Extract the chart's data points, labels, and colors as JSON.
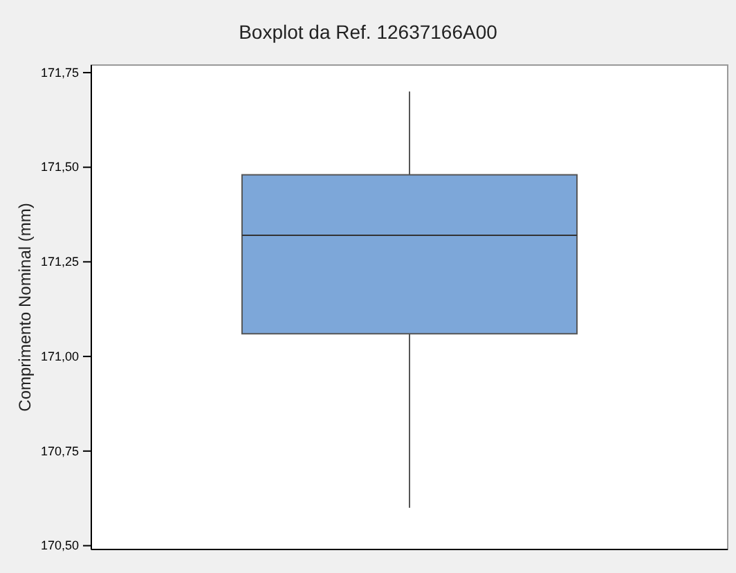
{
  "chart_data": {
    "type": "box",
    "title": "Boxplot da Ref. 12637166A00",
    "ylabel": "Comprimento Nominal (mm)",
    "categories": [
      null
    ],
    "series": [
      {
        "color": "#7da7d9",
        "boxes": [
          {
            "low": 170.6,
            "q1": 171.06,
            "median": 171.32,
            "q3": 171.48,
            "high": 171.7
          }
        ]
      }
    ],
    "ylim": [
      170.49,
      171.77
    ],
    "yticks": [
      {
        "value": 170.5,
        "label": "170,50"
      },
      {
        "value": 170.75,
        "label": "170,75"
      },
      {
        "value": 171,
        "label": "171,00"
      },
      {
        "value": 171.25,
        "label": "171,25"
      },
      {
        "value": 171.5,
        "label": "171,50"
      },
      {
        "value": 171.75,
        "label": "171,75"
      }
    ],
    "grid": false
  }
}
